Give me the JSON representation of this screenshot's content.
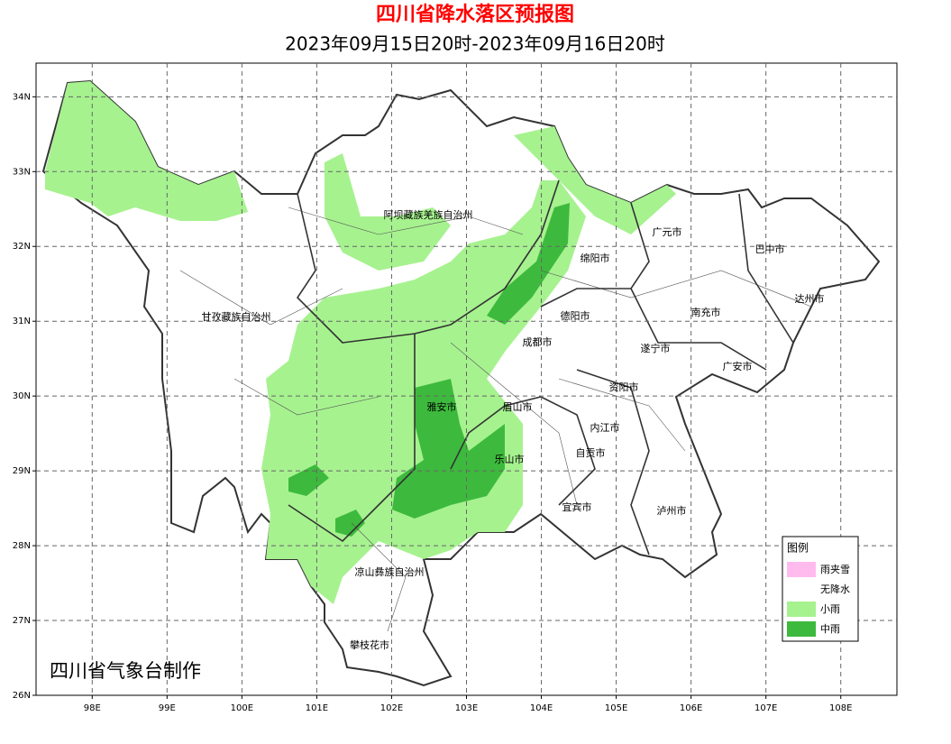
{
  "header": {
    "title": "四川省降水落区预报图",
    "subtitle": "2023年09月15日20时-2023年09月16日20时"
  },
  "map": {
    "xlim": [
      97.25,
      108.75
    ],
    "ylim": [
      26,
      34.45
    ],
    "xticks": [
      {
        "value": 98,
        "label": "98E"
      },
      {
        "value": 99,
        "label": "99E"
      },
      {
        "value": 100,
        "label": "100E"
      },
      {
        "value": 101,
        "label": "101E"
      },
      {
        "value": 102,
        "label": "102E"
      },
      {
        "value": 103,
        "label": "103E"
      },
      {
        "value": 104,
        "label": "104E"
      },
      {
        "value": 105,
        "label": "105E"
      },
      {
        "value": 106,
        "label": "106E"
      },
      {
        "value": 107,
        "label": "107E"
      },
      {
        "value": 108,
        "label": "108E"
      }
    ],
    "yticks": [
      {
        "value": 26,
        "label": "26N"
      },
      {
        "value": 27,
        "label": "27N"
      },
      {
        "value": 28,
        "label": "28N"
      },
      {
        "value": 29,
        "label": "29N"
      },
      {
        "value": 30,
        "label": "30N"
      },
      {
        "value": 31,
        "label": "31N"
      },
      {
        "value": 32,
        "label": "32N"
      },
      {
        "value": 33,
        "label": "33N"
      },
      {
        "value": 34,
        "label": "34N"
      }
    ],
    "grid": true,
    "labels": [
      "阿坝藏族羌族自治州",
      "甘孜藏族自治州",
      "广元市",
      "巴中市",
      "绵阳市",
      "达州市",
      "德阳市",
      "南充市",
      "成都市",
      "遂宁市",
      "广安市",
      "资阳市",
      "雅安市",
      "眉山市",
      "内江市",
      "自贡市",
      "乐山市",
      "宜宾市",
      "泸州市",
      "凉山彝族自治州",
      "攀枝花市"
    ]
  },
  "legend": {
    "title": "图例",
    "items": [
      {
        "label": "雨夹雪",
        "color": "#ffbbee"
      },
      {
        "label": "无降水",
        "color": "#ffffff"
      },
      {
        "label": "小雨",
        "color": "#a6f28f"
      },
      {
        "label": "中雨",
        "color": "#3dba3d"
      }
    ]
  },
  "footer": {
    "credit": "四川省气象台制作"
  }
}
